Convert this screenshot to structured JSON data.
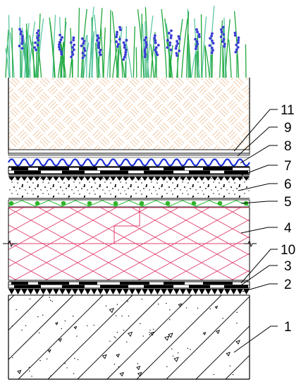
{
  "labels": [
    {
      "id": "11",
      "text": "11"
    },
    {
      "id": "9",
      "text": "9"
    },
    {
      "id": "8",
      "text": "8"
    },
    {
      "id": "7",
      "text": "7"
    },
    {
      "id": "6",
      "text": "6"
    },
    {
      "id": "5",
      "text": "5"
    },
    {
      "id": "4",
      "text": "4"
    },
    {
      "id": "10",
      "text": "10"
    },
    {
      "id": "3",
      "text": "3"
    },
    {
      "id": "2",
      "text": "2"
    },
    {
      "id": "1",
      "text": "1"
    }
  ],
  "colors": {
    "outline": "#000000",
    "soil_hatch": "#f1c8a3",
    "drainage_wave": "#1a2fd6",
    "geotextile": "#35c43f",
    "geotextile_dot": "#2fb52a",
    "insulation_hatch": "#e0406e",
    "grass": "#1fa83c",
    "grass_light": "#5cc6a4",
    "flower": "#3b3ad6"
  },
  "icons": [
    "grass-vegetation",
    "flower-clusters"
  ]
}
